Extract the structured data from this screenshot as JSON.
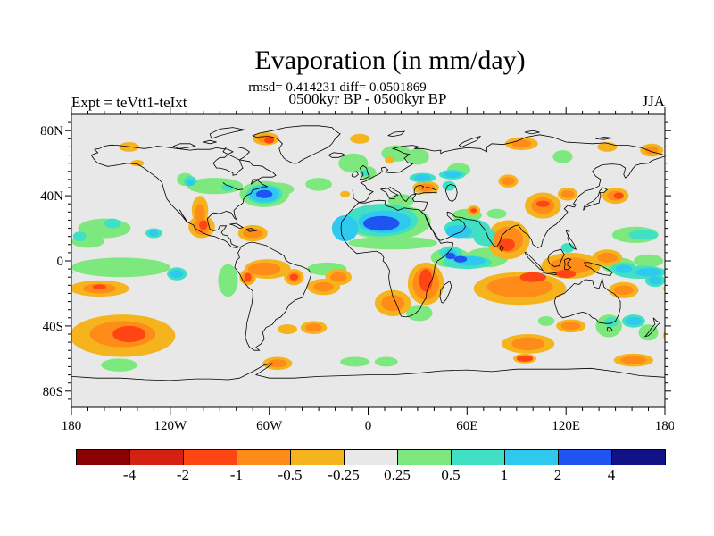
{
  "header": {
    "title": "Evaporation (in mm/day)",
    "stats": "rmsd= 0.414231 diff= 0.0501869",
    "period": "0500kyr BP - 0500kyr BP",
    "experiment": "Expt = teVtt1-teIxt",
    "season": "JJA"
  },
  "chart_data": {
    "type": "heatmap",
    "subtype": "filled_contour_world_map",
    "projection": "equirectangular",
    "lon_range": [
      -180,
      180
    ],
    "lat_range": [
      -90,
      90
    ],
    "background_color": "#e8e8e8",
    "coastline_color": "#000000",
    "contour_levels": [
      -4,
      -2,
      -1,
      -0.5,
      -0.25,
      0.25,
      0.5,
      1,
      2,
      4
    ],
    "colorbar": {
      "tick_labels": [
        "-4",
        "-2",
        "-1",
        "-0.5",
        "-0.25",
        "0.25",
        "0.5",
        "1",
        "2",
        "4"
      ],
      "segment_colors": [
        "#8b0000",
        "#d42114",
        "#ff4514",
        "#ff8c19",
        "#f5b41e",
        "#e8e8e8",
        "#7de87d",
        "#3fe0c3",
        "#2fc9f0",
        "#1e55f0",
        "#121288"
      ]
    },
    "band_colors": {
      "0.25": "#7de87d",
      "0.5": "#3fe0c3",
      "1": "#2fc9f0",
      "2": "#1e55f0",
      "4": "#121288",
      "-0.25": "#f5b41e",
      "-0.5": "#ff8c19",
      "-1": "#ff4514",
      "-2": "#d42114",
      "-4": "#8b0000"
    },
    "band_draw_order": [
      "0.25",
      "-0.25",
      "0.5",
      "-0.5",
      "1",
      "-1",
      "2",
      "-2",
      "4",
      "-4"
    ],
    "axes": {
      "lat_ticks": [
        {
          "label": "80N",
          "lat": 80
        },
        {
          "label": "40N",
          "lat": 40
        },
        {
          "label": "0",
          "lat": 0
        },
        {
          "label": "40S",
          "lat": -40
        },
        {
          "label": "80S",
          "lat": -80
        }
      ],
      "lon_ticks": [
        {
          "label": "180",
          "lon": -180
        },
        {
          "label": "120W",
          "lon": -120
        },
        {
          "label": "60W",
          "lon": -60
        },
        {
          "label": "0",
          "lon": 0
        },
        {
          "label": "60E",
          "lon": 60
        },
        {
          "label": "120E",
          "lon": 120
        },
        {
          "label": "180",
          "lon": 180
        }
      ],
      "lat_minor_deg": 5,
      "lon_minor_deg": 10,
      "lat_major_deg": 40,
      "lon_major_deg": 60
    },
    "anomaly_regions_format": [
      "lon",
      "lat",
      "rx_deg",
      "ry_deg",
      "band"
    ],
    "anomaly_regions": [
      [
        -9,
        60,
        9,
        6,
        "0.25"
      ],
      [
        -30,
        47,
        8,
        4,
        "0.25"
      ],
      [
        -93,
        46,
        17,
        5,
        "0.25"
      ],
      [
        -63,
        41,
        15,
        8,
        "0.25"
      ],
      [
        -55,
        44,
        10,
        4,
        "0.25"
      ],
      [
        17,
        66,
        9,
        5,
        "0.25"
      ],
      [
        30,
        64,
        7,
        5,
        "0.25"
      ],
      [
        55,
        56,
        7,
        4,
        "0.25"
      ],
      [
        20,
        37,
        8,
        4,
        "0.25"
      ],
      [
        12,
        24,
        26,
        11,
        "0.25"
      ],
      [
        15,
        11,
        27,
        4,
        "0.25"
      ],
      [
        60,
        28,
        9,
        4,
        "0.25"
      ],
      [
        78,
        29,
        6,
        3,
        "0.25"
      ],
      [
        118,
        64,
        6,
        4,
        "0.25"
      ],
      [
        162,
        16,
        14,
        5,
        "0.25"
      ],
      [
        -160,
        20,
        16,
        6,
        "0.25"
      ],
      [
        -150,
        -4,
        30,
        6,
        "0.25"
      ],
      [
        -170,
        12,
        10,
        4,
        "0.25"
      ],
      [
        -85,
        -12,
        6,
        10,
        "0.25"
      ],
      [
        -25,
        -5,
        12,
        4,
        "0.25"
      ],
      [
        31,
        -32,
        8,
        5,
        "0.25"
      ],
      [
        72,
        2,
        13,
        6,
        "0.25"
      ],
      [
        50,
        2,
        12,
        6,
        "0.25"
      ],
      [
        146,
        -40,
        8,
        7,
        "0.25"
      ],
      [
        170,
        -44,
        6,
        5,
        "0.25"
      ],
      [
        -151,
        -64,
        11,
        4,
        "0.25"
      ],
      [
        -8,
        -62,
        9,
        3,
        "0.25"
      ],
      [
        11,
        -62,
        7,
        3,
        "0.25"
      ],
      [
        152,
        -3,
        10,
        5,
        "0.25"
      ],
      [
        -111,
        50,
        5,
        4,
        "0.25"
      ],
      [
        0,
        54,
        5,
        4,
        "0.25"
      ],
      [
        170,
        0,
        9,
        4,
        "0.25"
      ],
      [
        108,
        -37,
        5,
        3,
        "0.25"
      ],
      [
        -62,
        75,
        8,
        4,
        "-0.25"
      ],
      [
        -145,
        70,
        6,
        3,
        "-0.25"
      ],
      [
        93,
        72,
        10,
        4,
        "-0.25"
      ],
      [
        145,
        70,
        6,
        3,
        "-0.25"
      ],
      [
        172,
        68,
        7,
        4,
        "-0.25"
      ],
      [
        -5,
        75,
        6,
        3,
        "-0.25"
      ],
      [
        35,
        45,
        8,
        4,
        "-0.25"
      ],
      [
        13,
        62,
        3,
        2,
        "-0.25"
      ],
      [
        -14,
        41,
        3,
        2,
        "-0.25"
      ],
      [
        -102,
        31,
        5,
        9,
        "-0.25"
      ],
      [
        -101,
        21,
        8,
        7,
        "-0.25"
      ],
      [
        -70,
        17,
        9,
        5,
        "-0.25"
      ],
      [
        -61,
        -5,
        14,
        6,
        "-0.25"
      ],
      [
        -73,
        -10,
        5,
        5,
        "-0.25"
      ],
      [
        -45,
        -10,
        6,
        5,
        "-0.25"
      ],
      [
        -27,
        -16,
        10,
        5,
        "-0.25"
      ],
      [
        -18,
        -10,
        8,
        5,
        "-0.25"
      ],
      [
        15,
        -26,
        11,
        8,
        "-0.25"
      ],
      [
        35,
        -14,
        11,
        13,
        "-0.25"
      ],
      [
        85,
        13,
        13,
        12,
        "-0.25"
      ],
      [
        64,
        31,
        4,
        3,
        "-0.25"
      ],
      [
        106,
        34,
        11,
        8,
        "-0.25"
      ],
      [
        121,
        41,
        6,
        4,
        "-0.25"
      ],
      [
        150,
        40,
        8,
        5,
        "-0.25"
      ],
      [
        85,
        49,
        6,
        4,
        "-0.25"
      ],
      [
        123,
        -3,
        18,
        8,
        "-0.25"
      ],
      [
        92,
        -17,
        28,
        10,
        "-0.25"
      ],
      [
        123,
        -40,
        9,
        4,
        "-0.25"
      ],
      [
        97,
        -51,
        16,
        6,
        "-0.25"
      ],
      [
        95,
        -60,
        7,
        3,
        "-0.25"
      ],
      [
        161,
        -61,
        12,
        4,
        "-0.25"
      ],
      [
        -149,
        -46,
        32,
        13,
        "-0.25"
      ],
      [
        -163,
        -17,
        18,
        5,
        "-0.25"
      ],
      [
        -49,
        -42,
        6,
        3,
        "-0.25"
      ],
      [
        -33,
        -41,
        8,
        4,
        "-0.25"
      ],
      [
        -55,
        -63,
        9,
        4,
        "-0.25"
      ],
      [
        -140,
        60,
        4,
        2,
        "-0.25"
      ],
      [
        145,
        2,
        9,
        5,
        "-0.25"
      ],
      [
        155,
        -18,
        9,
        5,
        "-0.25"
      ],
      [
        8,
        25,
        22,
        10,
        "0.5"
      ],
      [
        60,
        20,
        14,
        6,
        "0.5"
      ],
      [
        60,
        -1,
        15,
        4,
        "0.5"
      ],
      [
        72,
        14,
        8,
        5,
        "0.5"
      ],
      [
        -108,
        49,
        4,
        3,
        "0.5"
      ],
      [
        -85,
        45,
        4,
        2,
        "0.5"
      ],
      [
        -130,
        17,
        5,
        3,
        "0.5"
      ],
      [
        -155,
        23,
        5,
        3,
        "0.5"
      ],
      [
        -175,
        15,
        4,
        3,
        "0.5"
      ],
      [
        -116,
        -8,
        6,
        4,
        "0.5"
      ],
      [
        -2,
        54,
        3,
        2,
        "0.5"
      ],
      [
        33,
        51,
        8,
        3,
        "0.5"
      ],
      [
        51,
        53,
        8,
        3,
        "0.5"
      ],
      [
        49,
        46,
        4,
        3,
        "0.5"
      ],
      [
        121,
        8,
        4,
        3,
        "0.5"
      ],
      [
        155,
        -5,
        8,
        4,
        "0.5"
      ],
      [
        161,
        -37,
        7,
        4,
        "0.5"
      ],
      [
        147.5,
        -37.5,
        4,
        3,
        "0.5"
      ],
      [
        174,
        -12,
        6,
        4,
        "0.5"
      ],
      [
        50,
        5,
        7,
        4,
        "0.5"
      ],
      [
        167,
        16,
        9,
        3,
        "0.5"
      ],
      [
        165,
        -7,
        16,
        4,
        "0.5"
      ],
      [
        -63,
        41,
        11,
        6,
        "0.5"
      ],
      [
        -62,
        75,
        5,
        2.5,
        "-0.5"
      ],
      [
        93,
        72,
        6,
        2.5,
        "-0.5"
      ],
      [
        172,
        68,
        4,
        2.5,
        "-0.5"
      ],
      [
        35,
        45,
        5,
        2.5,
        "-0.5"
      ],
      [
        -102,
        29,
        3,
        6,
        "-0.5"
      ],
      [
        -101,
        21,
        5,
        5,
        "-0.5"
      ],
      [
        -70,
        17,
        6,
        3,
        "-0.5"
      ],
      [
        -63,
        -5,
        10,
        4,
        "-0.5"
      ],
      [
        15,
        -26,
        7,
        5,
        "-0.5"
      ],
      [
        35,
        -14,
        8,
        10,
        "-0.5"
      ],
      [
        85,
        13,
        9,
        8,
        "-0.5"
      ],
      [
        106,
        34,
        7,
        5,
        "-0.5"
      ],
      [
        150,
        40,
        5,
        3,
        "-0.5"
      ],
      [
        123,
        -3,
        13,
        5,
        "-0.5"
      ],
      [
        92,
        -16,
        20,
        6.5,
        "-0.5"
      ],
      [
        -149,
        -45,
        20,
        8,
        "-0.5"
      ],
      [
        -163,
        -17,
        10,
        3,
        "-0.5"
      ],
      [
        97,
        -51,
        10,
        4,
        "-0.5"
      ],
      [
        161,
        -61,
        8,
        2.5,
        "-0.5"
      ],
      [
        -33,
        -41,
        5,
        2.5,
        "-0.5"
      ],
      [
        -55,
        -63,
        6,
        2.5,
        "-0.5"
      ],
      [
        64,
        31,
        2.5,
        2,
        "-0.5"
      ],
      [
        121,
        41,
        4,
        2.5,
        "-0.5"
      ],
      [
        -45,
        -10,
        4,
        3,
        "-0.5"
      ],
      [
        -73,
        -10,
        3.5,
        3.5,
        "-0.5"
      ],
      [
        123,
        -40,
        6,
        2.5,
        "-0.5"
      ],
      [
        -27,
        -16,
        6,
        3,
        "-0.5"
      ],
      [
        85,
        49,
        4,
        2.5,
        "-0.5"
      ],
      [
        -18,
        -10,
        5,
        3,
        "-0.5"
      ],
      [
        145,
        2,
        6,
        3,
        "-0.5"
      ],
      [
        155,
        -18,
        6,
        3,
        "-0.5"
      ],
      [
        10,
        24,
        16,
        7,
        "1"
      ],
      [
        -14,
        20,
        8,
        8,
        "1"
      ],
      [
        55,
        18,
        8,
        4,
        "1"
      ],
      [
        62,
        0,
        9,
        3,
        "1"
      ],
      [
        50,
        4,
        4,
        3,
        "1"
      ],
      [
        -63,
        41,
        9,
        5,
        "1"
      ],
      [
        -108,
        48,
        2.5,
        2,
        "1"
      ],
      [
        -130,
        17,
        3,
        2,
        "1"
      ],
      [
        -116,
        -8,
        4,
        2.5,
        "1"
      ],
      [
        155,
        -5,
        5,
        2.5,
        "1"
      ],
      [
        161,
        -37,
        5,
        2.5,
        "1"
      ],
      [
        174,
        -12,
        4,
        2.5,
        "1"
      ],
      [
        33,
        51,
        5,
        2,
        "1"
      ],
      [
        51,
        53,
        5,
        2,
        "1"
      ],
      [
        170,
        -7,
        8,
        2.5,
        "1"
      ],
      [
        35,
        -12,
        4,
        7,
        "-1"
      ],
      [
        -73,
        -10,
        2,
        2.5,
        "-1"
      ],
      [
        -45,
        -10,
        2.5,
        2,
        "-1"
      ],
      [
        84,
        10,
        5,
        4,
        "-1"
      ],
      [
        100,
        -10,
        8,
        3,
        "-1"
      ],
      [
        120,
        -8,
        6,
        2.5,
        "-1"
      ],
      [
        106,
        35,
        4,
        2,
        "-1"
      ],
      [
        152,
        40,
        3,
        2,
        "-1"
      ],
      [
        -145,
        -45,
        10,
        5,
        "-1"
      ],
      [
        95,
        -60,
        5,
        2,
        "-1"
      ],
      [
        -163,
        -16,
        4,
        1.5,
        "-1"
      ],
      [
        -100,
        22,
        2.5,
        3,
        "-1"
      ],
      [
        64,
        31,
        1.8,
        1.2,
        "-1"
      ],
      [
        -60,
        74,
        3,
        2,
        "-1"
      ],
      [
        8,
        23,
        11,
        4.5,
        "2"
      ],
      [
        -63,
        41,
        5,
        2.5,
        "2"
      ],
      [
        50,
        3,
        3,
        2,
        "2"
      ],
      [
        56,
        1,
        4,
        2,
        "2"
      ]
    ]
  }
}
